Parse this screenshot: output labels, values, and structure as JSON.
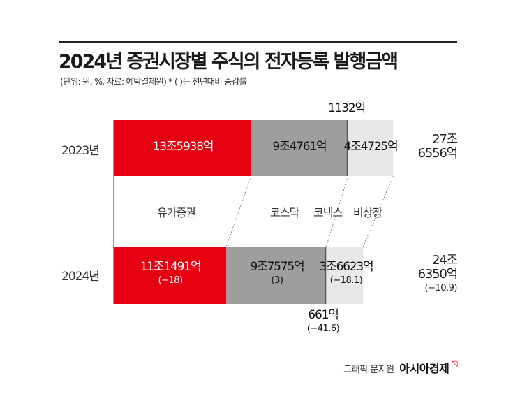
{
  "title": "2024년 증권시장별 주식의 전자등록 발행금액",
  "subtitle": "(단위: 원, %, 자료: 예탁결제원)  * ( )는 전년대비 증감률",
  "credit": "그래픽 문지원",
  "brand": "아시아경제",
  "colors": {
    "유가증권": "#e50012",
    "코스닥": "#9e9e9c",
    "코넥스": "#555555",
    "비상장": "#e8e8e6"
  },
  "chart_data": {
    "type": "bar",
    "orientation": "horizontal-stacked",
    "unit": "억원",
    "categories": [
      "2023년",
      "2024년"
    ],
    "series": [
      {
        "name": "유가증권",
        "values": [
          135938,
          111491
        ],
        "labels": [
          "13조5938억",
          "11조1491억"
        ],
        "changes": [
          "",
          "(−18)"
        ]
      },
      {
        "name": "코스닥",
        "values": [
          94761,
          97575
        ],
        "labels": [
          "9조4761억",
          "9조7575억"
        ],
        "changes": [
          "",
          "(3)"
        ]
      },
      {
        "name": "코넥스",
        "values": [
          1132,
          661
        ],
        "labels": [
          "1132억",
          "661억"
        ],
        "changes": [
          "",
          "(−41.6)"
        ]
      },
      {
        "name": "비상장",
        "values": [
          44725,
          36623
        ],
        "labels": [
          "4조4725억",
          "3조6623억"
        ],
        "changes": [
          "",
          "(−18.1)"
        ]
      }
    ],
    "totals": [
      {
        "line1": "27조",
        "line2": "6556억",
        "change": ""
      },
      {
        "line1": "24조",
        "line2": "6350억",
        "change": "(−10.9)"
      }
    ]
  }
}
